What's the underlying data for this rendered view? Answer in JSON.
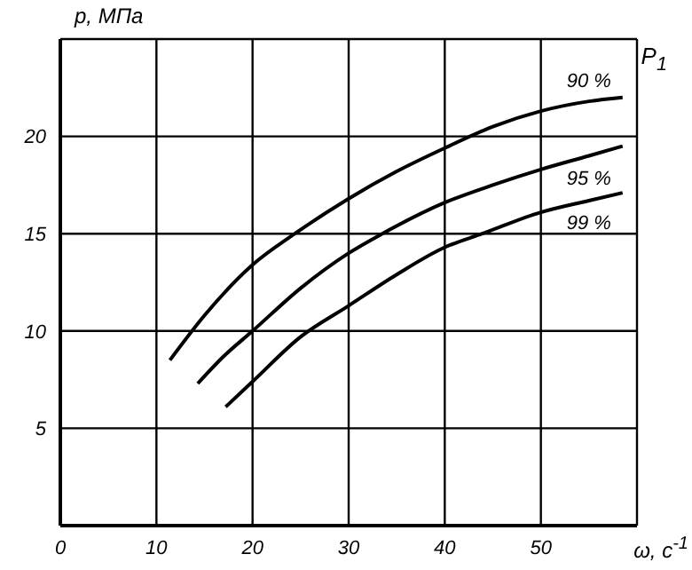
{
  "chart_data": {
    "type": "line",
    "xlabel": "ω, с$^{-1}$",
    "ylabel": "p, МПа",
    "legend_title": "P$_{1}$",
    "xlim": [
      0,
      60
    ],
    "xticks": [
      0,
      10,
      20,
      30,
      40,
      50,
      {
        "value": 60,
        "label": null
      }
    ],
    "ylim": [
      0,
      25
    ],
    "yticks": [
      5,
      10,
      15,
      20,
      {
        "value": 25,
        "label": null
      }
    ],
    "grid": true,
    "marker": "none",
    "line_style": "solid",
    "series": [
      {
        "name": "90 %",
        "color": "#000000",
        "x": [
          11.4,
          15,
          20,
          24.4,
          30,
          35,
          40,
          45,
          50,
          55,
          58.5
        ],
        "values": [
          8.5,
          10.8,
          13.4,
          15,
          16.8,
          18.2,
          19.4,
          20.5,
          21.3,
          21.8,
          22
        ]
      },
      {
        "name": "95 %",
        "color": "#000000",
        "x": [
          14.3,
          17,
          20,
          25,
          30,
          33.5,
          40,
          45,
          50,
          55,
          58.5
        ],
        "values": [
          7.3,
          8.7,
          10,
          12.2,
          14,
          15,
          16.6,
          17.5,
          18.3,
          19,
          19.5
        ]
      },
      {
        "name": "99 %",
        "color": "#000000",
        "x": [
          17.2,
          20,
          25,
          30,
          35,
          40,
          43.9,
          50,
          55,
          58.5
        ],
        "values": [
          6.1,
          7.4,
          9.7,
          11.3,
          12.9,
          14.3,
          15,
          16.1,
          16.7,
          17.1
        ]
      }
    ]
  }
}
